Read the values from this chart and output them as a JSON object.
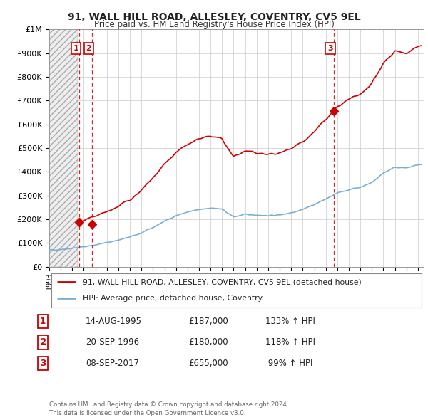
{
  "title": "91, WALL HILL ROAD, ALLESLEY, COVENTRY, CV5 9EL",
  "subtitle": "Price paid vs. HM Land Registry's House Price Index (HPI)",
  "ylim": [
    0,
    1000000
  ],
  "yticks": [
    0,
    100000,
    200000,
    300000,
    400000,
    500000,
    600000,
    700000,
    800000,
    900000,
    1000000
  ],
  "ytick_labels": [
    "£0",
    "£100K",
    "£200K",
    "£300K",
    "£400K",
    "£500K",
    "£600K",
    "£700K",
    "£800K",
    "£900K",
    "£1M"
  ],
  "xlim_start": 1993.0,
  "xlim_end": 2025.5,
  "hatch_end": 1995.5,
  "sale_points": [
    {
      "year": 1995.62,
      "price": 187000,
      "label": "1"
    },
    {
      "year": 1996.72,
      "price": 180000,
      "label": "2"
    },
    {
      "year": 2017.69,
      "price": 655000,
      "label": "3"
    }
  ],
  "legend_line1": "91, WALL HILL ROAD, ALLESLEY, COVENTRY, CV5 9EL (detached house)",
  "legend_line2": "HPI: Average price, detached house, Coventry",
  "table_rows": [
    [
      "1",
      "14-AUG-1995",
      "£187,000",
      "133% ↑ HPI"
    ],
    [
      "2",
      "20-SEP-1996",
      "£180,000",
      "118% ↑ HPI"
    ],
    [
      "3",
      "08-SEP-2017",
      "£655,000",
      " 99% ↑ HPI"
    ]
  ],
  "footnote": "Contains HM Land Registry data © Crown copyright and database right 2024.\nThis data is licensed under the Open Government Licence v3.0.",
  "red_color": "#cc0000",
  "blue_color": "#7aafd4",
  "grid_color": "#cccccc",
  "bg_color": "#ffffff",
  "hatch_bg": "#e8e8e8"
}
